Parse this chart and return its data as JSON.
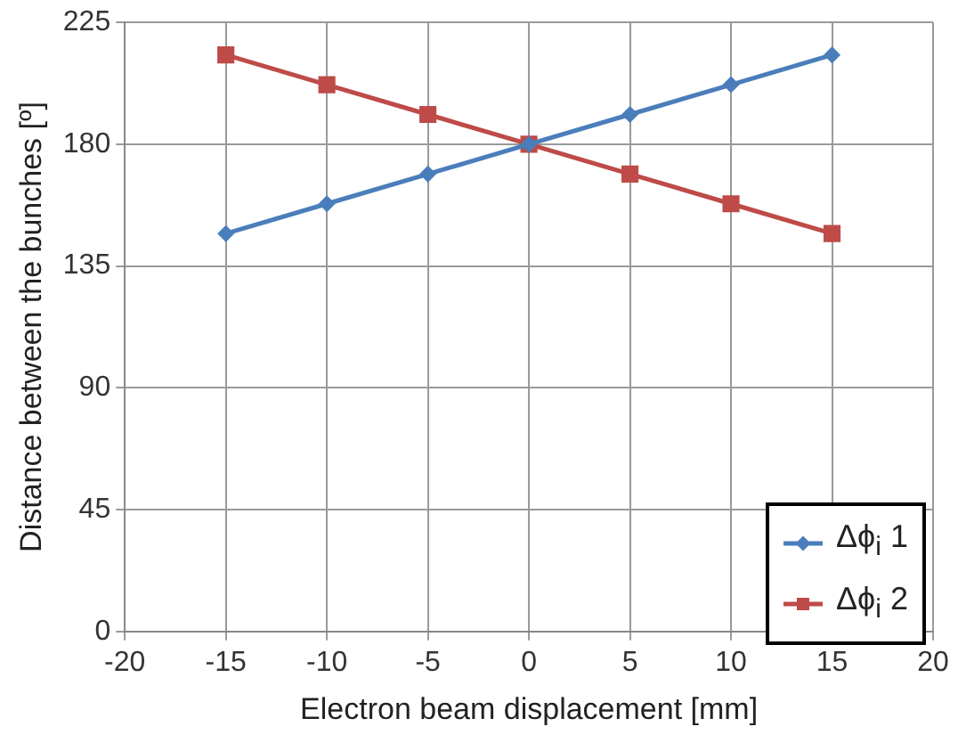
{
  "chart_data": {
    "type": "line",
    "xlabel": "Electron beam displacement [mm]",
    "ylabel": "Distance between the bunches [º]",
    "x": [
      -15,
      -10,
      -5,
      0,
      5,
      10,
      15
    ],
    "series": [
      {
        "name": "Δϕ$_{i}$ 1",
        "color": "#4a7ebb",
        "marker": "diamond",
        "values": [
          147,
          158,
          169,
          180,
          191,
          202,
          213
        ]
      },
      {
        "name": "Δϕ$_{i}$ 2",
        "color": "#be4b48",
        "marker": "square",
        "values": [
          213,
          202,
          191,
          180,
          169,
          158,
          147
        ]
      }
    ],
    "xlim": [
      -20,
      20
    ],
    "xticks": [
      -20,
      -15,
      -10,
      -5,
      0,
      5,
      10,
      15,
      20
    ],
    "ylim": [
      0,
      225
    ],
    "yticks": [
      0,
      45,
      90,
      135,
      180,
      225
    ],
    "grid": true,
    "legend": "bottom right"
  }
}
